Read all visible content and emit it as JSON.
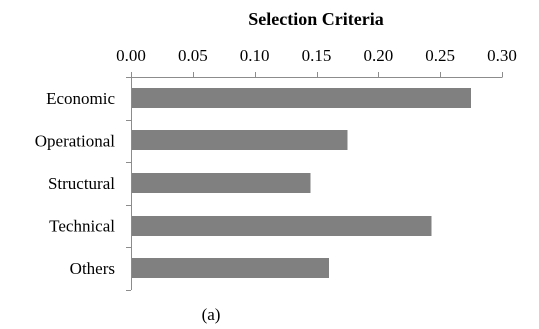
{
  "chart_data": {
    "type": "bar",
    "orientation": "horizontal",
    "title": "Selection Criteria",
    "caption": "(a)",
    "categories": [
      "Economic",
      "Operational",
      "Structural",
      "Technical",
      "Others"
    ],
    "values": [
      0.275,
      0.175,
      0.145,
      0.243,
      0.16
    ],
    "xlabel": "",
    "ylabel": "",
    "xlim": [
      0,
      0.3
    ],
    "x_ticks": [
      "0.00",
      "0.05",
      "0.10",
      "0.15",
      "0.20",
      "0.25",
      "0.30"
    ],
    "x_axis_position": "top",
    "grid": false,
    "legend": "none",
    "bar_color": "#808080",
    "axis_color": "#8c8c8c"
  }
}
